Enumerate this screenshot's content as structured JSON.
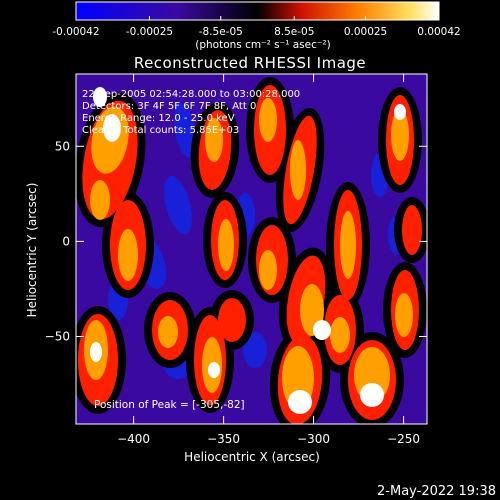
{
  "colorbar": {
    "tick_labels": [
      "-0.00042",
      "-0.00025",
      "-8.5e-05",
      "8.5e-05",
      "0.00025",
      "0.00042"
    ],
    "tick_values": [
      -0.00042,
      -0.00025,
      -8.5e-05,
      8.5e-05,
      0.00025,
      0.00042
    ],
    "range": [
      -0.00042,
      0.00042
    ],
    "unit_label": "(photons cm⁻² s⁻¹ asec⁻²)",
    "colors": [
      "#0000ff",
      "#3a0aa0",
      "#000000",
      "#ff2000",
      "#ffa000",
      "#ffffff"
    ]
  },
  "chart_data": {
    "type": "heatmap",
    "title": "Reconstructed RHESSI Image",
    "xlabel": "Heliocentric X (arcsec)",
    "ylabel": "Heliocentric Y (arcsec)",
    "xlim": [
      -432,
      -237
    ],
    "ylim": [
      -96,
      88
    ],
    "x_ticks": [
      -400,
      -350,
      -300,
      -250
    ],
    "x_tick_labels": [
      "−400",
      "−350",
      "−300",
      "−250"
    ],
    "y_ticks": [
      50,
      0,
      -50
    ],
    "y_tick_labels": [
      "50",
      "0",
      "−50"
    ],
    "colormap": [
      "#3a0aa0",
      "#000000",
      "#ff2000",
      "#ffa000",
      "#ffffff"
    ],
    "peak": [
      -305,
      -82
    ],
    "annotations": [
      "22-Sep-2005 02:54:28.000 to 03:00:28.000",
      "Detectors: 3F 4F 5F 6F 7F 8F, Att 0",
      "Energy Range: 12.0 - 25.0 keV",
      "Clean    Total counts: 5.85E+03"
    ],
    "peak_label": "Position of Peak = [-305,-82]"
  },
  "footer": {
    "timestamp": "2-May-2022 19:38"
  }
}
